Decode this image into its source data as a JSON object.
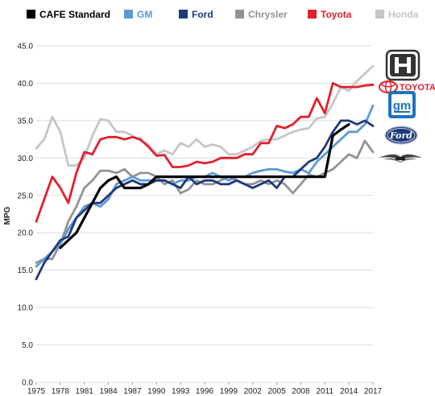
{
  "chart_data": {
    "type": "line",
    "title": "",
    "xlabel": "",
    "ylabel": "MPG",
    "ylim": [
      0,
      45
    ],
    "yticks": [
      "0.0",
      "5.0",
      "10.0",
      "15.0",
      "20.0",
      "25.0",
      "30.0",
      "35.0",
      "40.0",
      "45.0"
    ],
    "xticks": [
      "1975",
      "1978",
      "1981",
      "1984",
      "1987",
      "1990",
      "1993",
      "1996",
      "1999",
      "2002",
      "2005",
      "2008",
      "2011",
      "2014",
      "2017"
    ],
    "xlim": [
      1975,
      2017
    ],
    "grid": "horizontal",
    "legend_position": "top",
    "series": [
      {
        "name": "CAFE Standard",
        "color": "#000000",
        "x": [
          1978,
          1979,
          1980,
          1981,
          1982,
          1983,
          1984,
          1985,
          1986,
          1987,
          1988,
          1989,
          1990,
          1991,
          1992,
          1993,
          1994,
          1995,
          1996,
          1997,
          1998,
          1999,
          2000,
          2001,
          2002,
          2003,
          2004,
          2005,
          2006,
          2007,
          2008,
          2009,
          2010,
          2011,
          2012,
          2013,
          2014
        ],
        "y": [
          18.0,
          19.0,
          20.0,
          22.0,
          24.0,
          26.0,
          27.0,
          27.5,
          26.0,
          26.0,
          26.0,
          26.5,
          27.5,
          27.5,
          27.5,
          27.5,
          27.5,
          27.5,
          27.5,
          27.5,
          27.5,
          27.5,
          27.5,
          27.5,
          27.5,
          27.5,
          27.5,
          27.5,
          27.5,
          27.5,
          27.5,
          27.5,
          27.5,
          27.5,
          33.0,
          33.8,
          34.5
        ]
      },
      {
        "name": "GM",
        "color": "#5b9bd5",
        "x": [
          1975,
          1976,
          1977,
          1978,
          1979,
          1980,
          1981,
          1982,
          1983,
          1984,
          1985,
          1986,
          1987,
          1988,
          1989,
          1990,
          1991,
          1992,
          1993,
          1994,
          1995,
          1996,
          1997,
          1998,
          1999,
          2000,
          2001,
          2002,
          2003,
          2004,
          2005,
          2006,
          2007,
          2008,
          2009,
          2010,
          2011,
          2012,
          2013,
          2014,
          2015,
          2016,
          2017
        ],
        "y": [
          15.5,
          16.5,
          17.5,
          18.5,
          20.5,
          22.0,
          23.5,
          24.0,
          23.5,
          24.5,
          26.5,
          27.0,
          27.5,
          27.0,
          27.0,
          27.0,
          27.0,
          26.5,
          27.0,
          27.0,
          27.5,
          27.5,
          28.0,
          27.5,
          27.0,
          27.5,
          27.5,
          28.0,
          28.3,
          28.5,
          28.5,
          28.2,
          28.0,
          28.5,
          28.0,
          29.5,
          30.5,
          31.5,
          32.5,
          33.5,
          33.5,
          34.5,
          37.0
        ]
      },
      {
        "name": "Ford",
        "color": "#1f3a7a",
        "x": [
          1975,
          1976,
          1977,
          1978,
          1979,
          1980,
          1981,
          1982,
          1983,
          1984,
          1985,
          1986,
          1987,
          1988,
          1989,
          1990,
          1991,
          1992,
          1993,
          1994,
          1995,
          1996,
          1997,
          1998,
          1999,
          2000,
          2001,
          2002,
          2003,
          2004,
          2005,
          2006,
          2007,
          2008,
          2009,
          2010,
          2011,
          2012,
          2013,
          2014,
          2015,
          2016,
          2017
        ],
        "y": [
          13.8,
          16.0,
          17.5,
          19.0,
          19.5,
          22.0,
          23.0,
          24.0,
          24.0,
          25.0,
          26.0,
          26.5,
          27.0,
          26.5,
          26.5,
          27.0,
          27.0,
          26.5,
          26.0,
          27.5,
          26.5,
          27.0,
          27.0,
          26.5,
          26.5,
          27.0,
          26.5,
          26.0,
          26.5,
          27.0,
          26.0,
          27.5,
          27.5,
          28.5,
          29.5,
          30.0,
          31.5,
          33.5,
          35.0,
          35.0,
          34.5,
          35.0,
          34.3
        ]
      },
      {
        "name": "Chrysler",
        "color": "#939393",
        "x": [
          1975,
          1976,
          1977,
          1978,
          1979,
          1980,
          1981,
          1982,
          1983,
          1984,
          1985,
          1986,
          1987,
          1988,
          1989,
          1990,
          1991,
          1992,
          1993,
          1994,
          1995,
          1996,
          1997,
          1998,
          1999,
          2000,
          2001,
          2002,
          2003,
          2004,
          2005,
          2006,
          2007,
          2008,
          2009,
          2010,
          2011,
          2012,
          2013,
          2014,
          2015,
          2016,
          2017
        ],
        "y": [
          16.0,
          16.5,
          16.5,
          18.5,
          21.5,
          23.5,
          26.0,
          27.0,
          28.3,
          28.3,
          28.0,
          28.5,
          27.5,
          28.0,
          28.0,
          27.5,
          26.5,
          27.0,
          25.3,
          25.8,
          27.0,
          26.5,
          26.5,
          27.0,
          27.5,
          27.0,
          26.5,
          26.5,
          27.0,
          26.5,
          27.0,
          26.5,
          25.3,
          26.5,
          27.8,
          27.5,
          28.0,
          28.5,
          29.5,
          30.5,
          30.0,
          32.3,
          30.8
        ]
      },
      {
        "name": "Toyota",
        "color": "#e3202c",
        "x": [
          1975,
          1976,
          1977,
          1978,
          1979,
          1980,
          1981,
          1982,
          1983,
          1984,
          1985,
          1986,
          1987,
          1988,
          1989,
          1990,
          1991,
          1992,
          1993,
          1994,
          1995,
          1996,
          1997,
          1998,
          1999,
          2000,
          2001,
          2002,
          2003,
          2004,
          2005,
          2006,
          2007,
          2008,
          2009,
          2010,
          2011,
          2012,
          2013,
          2014,
          2015,
          2016,
          2017
        ],
        "y": [
          21.5,
          24.5,
          27.5,
          26.0,
          24.0,
          28.0,
          30.8,
          30.5,
          32.5,
          32.8,
          32.8,
          32.5,
          32.8,
          32.5,
          31.5,
          30.3,
          30.4,
          28.8,
          28.8,
          29.0,
          29.5,
          29.3,
          29.5,
          30.0,
          30.0,
          30.0,
          30.5,
          30.5,
          32.0,
          32.0,
          34.3,
          34.0,
          34.5,
          35.5,
          35.5,
          38.0,
          36.0,
          40.0,
          39.5,
          39.5,
          39.5,
          39.7,
          39.8
        ]
      },
      {
        "name": "Honda",
        "color": "#c6c6c6",
        "x": [
          1975,
          1976,
          1977,
          1978,
          1979,
          1980,
          1981,
          1982,
          1983,
          1984,
          1985,
          1986,
          1987,
          1988,
          1989,
          1990,
          1991,
          1992,
          1993,
          1994,
          1995,
          1996,
          1997,
          1998,
          1999,
          2000,
          2001,
          2002,
          2003,
          2004,
          2005,
          2006,
          2007,
          2008,
          2009,
          2010,
          2011,
          2012,
          2013,
          2014,
          2015,
          2016,
          2017
        ],
        "y": [
          31.3,
          32.5,
          35.5,
          33.5,
          29.0,
          29.0,
          30.0,
          33.0,
          35.2,
          35.0,
          33.5,
          33.5,
          33.0,
          32.3,
          31.8,
          30.5,
          31.0,
          30.5,
          32.0,
          31.5,
          32.5,
          31.5,
          31.8,
          31.5,
          30.5,
          30.5,
          31.0,
          31.5,
          32.3,
          32.5,
          32.5,
          33.0,
          33.5,
          33.8,
          34.0,
          35.3,
          35.5,
          37.3,
          39.5,
          39.0,
          40.3,
          41.3,
          42.3
        ]
      }
    ]
  },
  "logos": [
    {
      "name": "honda-logo",
      "text": ""
    },
    {
      "name": "toyota-logo",
      "text": "TOYOTA"
    },
    {
      "name": "gm-logo",
      "text": "gm"
    },
    {
      "name": "ford-logo",
      "text": "Ford"
    },
    {
      "name": "chrysler-logo",
      "text": ""
    }
  ]
}
